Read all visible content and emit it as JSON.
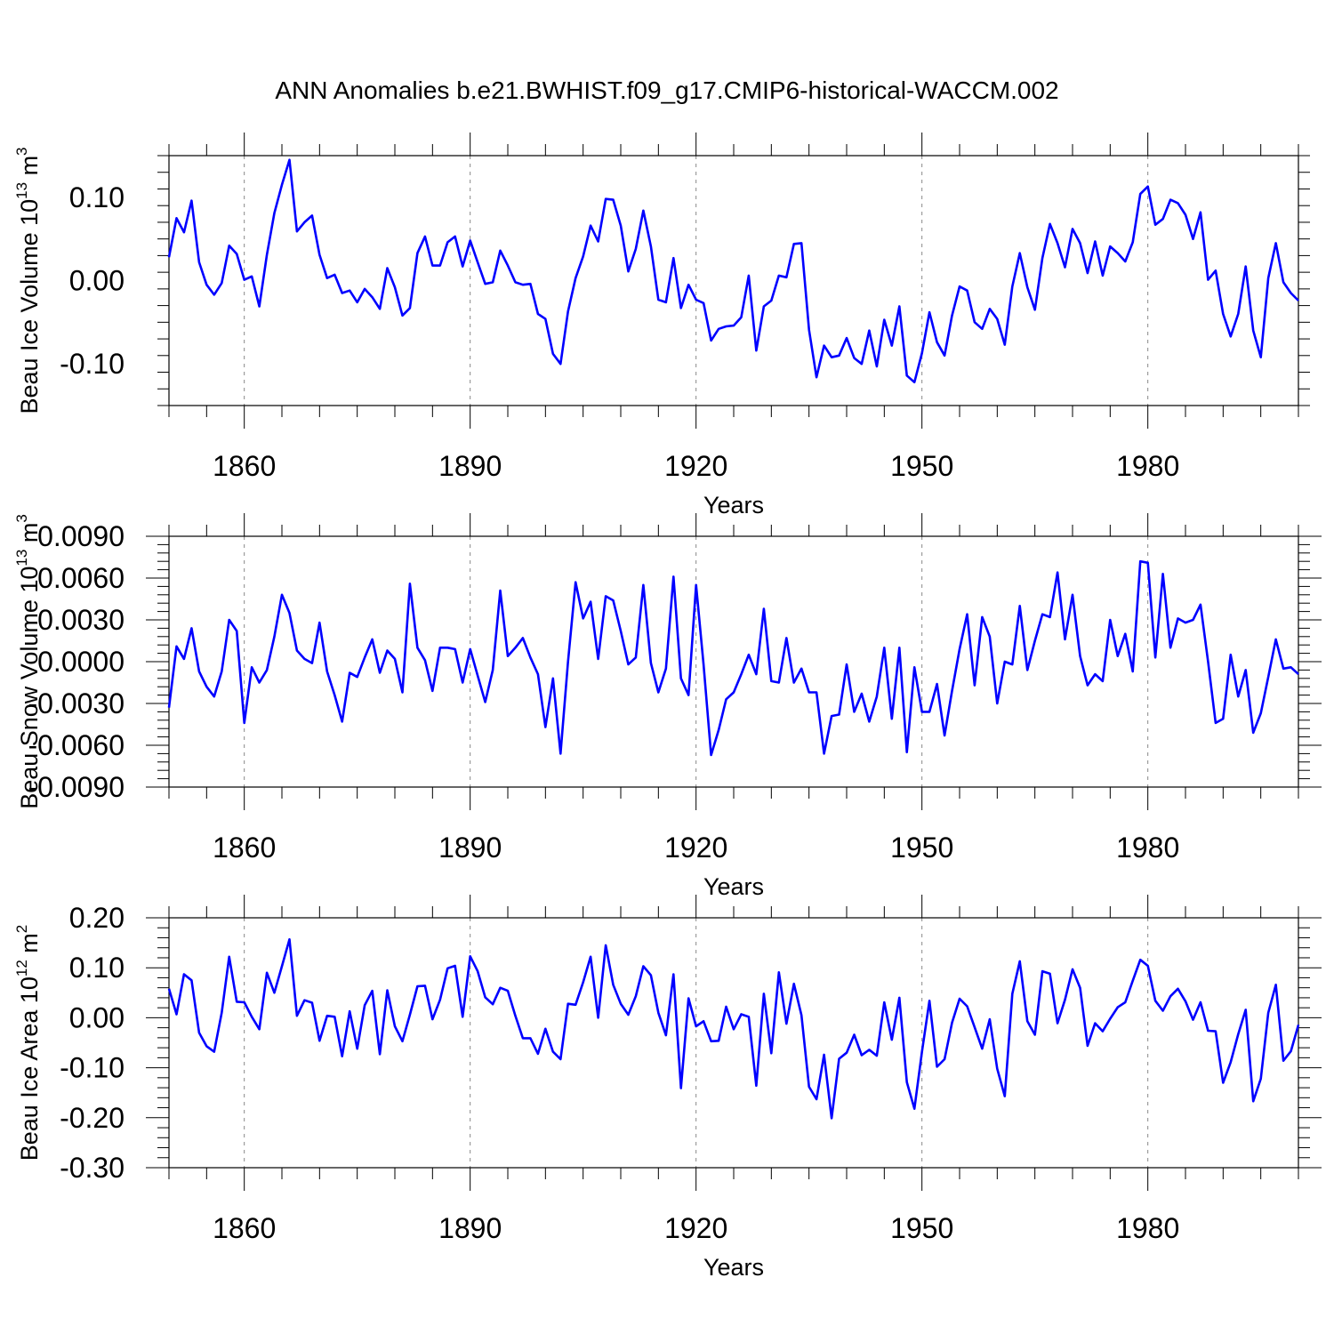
{
  "title": "ANN Anomalies b.e21.BWHIST.f09_g17.CMIP6-historical-WACCM.002",
  "line_color": "#0000ff",
  "chart_data": [
    {
      "type": "line",
      "ylabel": "Beau Ice Volume 10",
      "ylabel_sup": "13",
      "ylabel_unit": " m",
      "ylabel_unit_sup": "3",
      "xlabel": "Years",
      "xlim": [
        1850,
        2000
      ],
      "ylim": [
        -0.15,
        0.15
      ],
      "ytick_values": [
        -0.1,
        0.0,
        0.1
      ],
      "ytick_labels": [
        "-0.10",
        "0.00",
        "0.10"
      ],
      "xtick_values": [
        1860,
        1890,
        1920,
        1950,
        1980
      ],
      "xtick_labels": [
        "1860",
        "1890",
        "1920",
        "1950",
        "1980"
      ],
      "grid_x_dashed": true,
      "x_start": 1850,
      "values": [
        0.028,
        0.075,
        0.058,
        0.096,
        0.022,
        -0.005,
        -0.017,
        -0.003,
        0.042,
        0.032,
        0.001,
        0.005,
        -0.031,
        0.031,
        0.081,
        0.115,
        0.145,
        0.059,
        0.07,
        0.078,
        0.031,
        0.003,
        0.007,
        -0.015,
        -0.012,
        -0.026,
        -0.01,
        -0.02,
        -0.034,
        0.015,
        -0.008,
        -0.042,
        -0.033,
        0.033,
        0.053,
        0.018,
        0.018,
        0.046,
        0.053,
        0.017,
        0.048,
        0.022,
        -0.004,
        -0.002,
        0.036,
        0.018,
        -0.002,
        -0.005,
        -0.004,
        -0.04,
        -0.046,
        -0.088,
        -0.1,
        -0.037,
        0.003,
        0.029,
        0.066,
        0.047,
        0.098,
        0.097,
        0.066,
        0.011,
        0.038,
        0.084,
        0.041,
        -0.023,
        -0.026,
        0.027,
        -0.033,
        -0.005,
        -0.023,
        -0.027,
        -0.072,
        -0.058,
        -0.055,
        -0.054,
        -0.044,
        0.006,
        -0.084,
        -0.031,
        -0.024,
        0.006,
        0.004,
        0.044,
        0.045,
        -0.059,
        -0.116,
        -0.078,
        -0.092,
        -0.09,
        -0.069,
        -0.093,
        -0.1,
        -0.06,
        -0.103,
        -0.047,
        -0.078,
        -0.031,
        -0.114,
        -0.122,
        -0.087,
        -0.038,
        -0.074,
        -0.09,
        -0.042,
        -0.007,
        -0.012,
        -0.05,
        -0.058,
        -0.034,
        -0.046,
        -0.077,
        -0.007,
        0.033,
        -0.008,
        -0.035,
        0.027,
        0.068,
        0.045,
        0.016,
        0.062,
        0.045,
        0.009,
        0.047,
        0.006,
        0.041,
        0.033,
        0.023,
        0.046,
        0.104,
        0.113,
        0.067,
        0.074,
        0.097,
        0.093,
        0.079,
        0.05,
        0.082,
        0.001,
        0.012,
        -0.04,
        -0.067,
        -0.04,
        0.017,
        -0.06,
        -0.092,
        0.003,
        0.045,
        -0.002,
        -0.015,
        -0.024
      ]
    },
    {
      "type": "line",
      "ylabel": "Beau Snow Volume 10",
      "ylabel_sup": "13",
      "ylabel_unit": " m",
      "ylabel_unit_sup": "3",
      "xlabel": "Years",
      "xlim": [
        1850,
        2000
      ],
      "ylim": [
        -0.009,
        0.009
      ],
      "ytick_values": [
        -0.009,
        -0.006,
        -0.003,
        0.0,
        0.003,
        0.006,
        0.009
      ],
      "ytick_labels": [
        "-0.0090",
        "-0.0060",
        "-0.0030",
        "0.0000",
        "0.0030",
        "0.0060",
        "0.0090"
      ],
      "xtick_values": [
        1860,
        1890,
        1920,
        1950,
        1980
      ],
      "xtick_labels": [
        "1860",
        "1890",
        "1920",
        "1950",
        "1980"
      ],
      "grid_x_dashed": true,
      "x_start": 1850,
      "values": [
        -0.0033,
        0.0011,
        0.0002,
        0.0024,
        -0.0007,
        -0.0018,
        -0.0025,
        -0.0007,
        0.003,
        0.0022,
        -0.0044,
        -0.0004,
        -0.0015,
        -0.0006,
        0.0018,
        0.0048,
        0.0035,
        0.0008,
        0.0002,
        -0.0001,
        0.0028,
        -0.0007,
        -0.0024,
        -0.0043,
        -0.0008,
        -0.0011,
        0.0003,
        0.0016,
        -0.0008,
        0.0008,
        0.0002,
        -0.0022,
        0.0056,
        0.001,
        0.0001,
        -0.0021,
        0.001,
        0.001,
        0.0009,
        -0.0015,
        0.0009,
        -0.001,
        -0.0029,
        -0.0006,
        0.0051,
        0.0004,
        0.001,
        0.0017,
        0.0003,
        -0.0009,
        -0.0047,
        -0.0012,
        -0.0066,
        0.0,
        0.0057,
        0.0031,
        0.0043,
        0.0002,
        0.0047,
        0.0044,
        0.0022,
        -0.0002,
        0.0003,
        0.0055,
        -0.0001,
        -0.0022,
        -0.0005,
        0.0061,
        -0.0012,
        -0.0024,
        0.0055,
        -0.0002,
        -0.0067,
        -0.0049,
        -0.0027,
        -0.0022,
        -0.0009,
        0.0005,
        -0.0009,
        0.0038,
        -0.0014,
        -0.0015,
        0.0017,
        -0.0015,
        -0.0005,
        -0.0022,
        -0.0022,
        -0.0066,
        -0.0039,
        -0.0038,
        -0.0002,
        -0.0036,
        -0.0023,
        -0.0043,
        -0.0025,
        0.001,
        -0.0041,
        0.001,
        -0.0065,
        -0.0004,
        -0.0036,
        -0.0036,
        -0.0016,
        -0.0053,
        -0.0021,
        0.0009,
        0.0034,
        -0.0017,
        0.0032,
        0.0018,
        -0.003,
        0.0,
        -0.0002,
        0.004,
        -0.0006,
        0.0015,
        0.0034,
        0.0032,
        0.0064,
        0.0016,
        0.0048,
        0.0004,
        -0.0017,
        -0.0009,
        -0.0014,
        0.003,
        0.0004,
        0.002,
        -0.0007,
        0.0072,
        0.0071,
        0.0003,
        0.0063,
        0.001,
        0.0031,
        0.0028,
        0.003,
        0.0041,
        0.0,
        -0.0044,
        -0.0041,
        0.0005,
        -0.0025,
        -0.0006,
        -0.0051,
        -0.0037,
        -0.0011,
        0.0016,
        -0.0005,
        -0.0004,
        -0.0009
      ]
    },
    {
      "type": "line",
      "ylabel": "Beau Ice Area 10",
      "ylabel_sup": "12",
      "ylabel_unit": " m",
      "ylabel_unit_sup": "2",
      "xlabel": "Years",
      "xlim": [
        1850,
        2000
      ],
      "ylim": [
        -0.3,
        0.2
      ],
      "ytick_values": [
        -0.3,
        -0.2,
        -0.1,
        0.0,
        0.1,
        0.2
      ],
      "ytick_labels": [
        "-0.30",
        "-0.20",
        "-0.10",
        "0.00",
        "0.10",
        "0.20"
      ],
      "xtick_values": [
        1860,
        1890,
        1920,
        1950,
        1980
      ],
      "xtick_labels": [
        "1860",
        "1890",
        "1920",
        "1950",
        "1980"
      ],
      "grid_x_dashed": true,
      "x_start": 1850,
      "values": [
        0.058,
        0.007,
        0.087,
        0.075,
        -0.03,
        -0.057,
        -0.068,
        0.01,
        0.122,
        0.032,
        0.031,
        0.002,
        -0.023,
        0.09,
        0.05,
        0.103,
        0.157,
        0.004,
        0.035,
        0.03,
        -0.046,
        0.004,
        0.002,
        -0.077,
        0.013,
        -0.062,
        0.025,
        0.054,
        -0.073,
        0.055,
        -0.017,
        -0.047,
        0.006,
        0.063,
        0.064,
        -0.003,
        0.036,
        0.099,
        0.104,
        0.002,
        0.123,
        0.093,
        0.041,
        0.027,
        0.06,
        0.054,
        0.004,
        -0.041,
        -0.041,
        -0.072,
        -0.022,
        -0.068,
        -0.083,
        0.028,
        0.026,
        0.071,
        0.122,
        0.0,
        0.145,
        0.066,
        0.028,
        0.006,
        0.043,
        0.103,
        0.085,
        0.01,
        -0.035,
        0.087,
        -0.141,
        0.039,
        -0.017,
        -0.007,
        -0.047,
        -0.046,
        0.022,
        -0.023,
        0.007,
        0.002,
        -0.136,
        0.048,
        -0.071,
        0.091,
        -0.012,
        0.068,
        0.005,
        -0.138,
        -0.163,
        -0.074,
        -0.201,
        -0.082,
        -0.07,
        -0.034,
        -0.075,
        -0.064,
        -0.076,
        0.031,
        -0.044,
        0.04,
        -0.129,
        -0.182,
        -0.068,
        0.034,
        -0.098,
        -0.083,
        -0.01,
        0.038,
        0.023,
        -0.019,
        -0.062,
        -0.003,
        -0.102,
        -0.157,
        0.048,
        0.113,
        -0.007,
        -0.034,
        0.093,
        0.088,
        -0.011,
        0.036,
        0.097,
        0.06,
        -0.056,
        -0.011,
        -0.027,
        -0.002,
        0.021,
        0.031,
        0.074,
        0.116,
        0.104,
        0.034,
        0.014,
        0.043,
        0.058,
        0.033,
        -0.004,
        0.031,
        -0.026,
        -0.027,
        -0.13,
        -0.089,
        -0.033,
        0.016,
        -0.167,
        -0.122,
        0.01,
        0.066,
        -0.086,
        -0.067,
        -0.014
      ]
    }
  ]
}
